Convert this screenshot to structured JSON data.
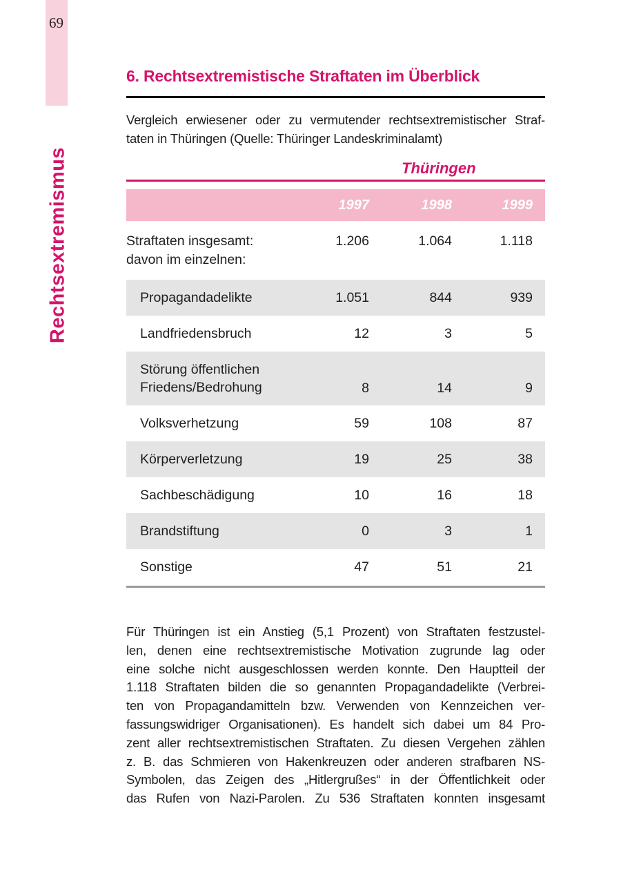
{
  "page": {
    "number": "69",
    "sidebar_label": "Rechtsextremismus"
  },
  "colors": {
    "accent_magenta": "#d4146a",
    "sidebar_pink": "#f8d2dd",
    "table_header_pink": "#f5b7ca",
    "row_stripe_gray": "#e4e4e4",
    "rule_black": "#0a0a0a",
    "rule_gray": "#9b9b9b",
    "body_text": "#1e1e1e"
  },
  "section": {
    "heading": "6. Rechtsextremistische Straftaten im Überblick",
    "intro_lines": [
      "Vergleich erwiesener oder zu vermutender rechtsextremistischer Straf-",
      "taten in Thüringen (Quelle: Thüringer Landeskriminalamt)"
    ]
  },
  "table": {
    "title": "Thüringen",
    "years": [
      "1997",
      "1998",
      "1999"
    ],
    "summary_row": {
      "line1": "Straftaten insgesamt:",
      "line2": "davon im einzelnen:",
      "values": [
        "1.206",
        "1.064",
        "1.118"
      ]
    },
    "rows": [
      {
        "line1": "Propagandadelikte",
        "line2": "",
        "values": [
          "1.051",
          "844",
          "939"
        ]
      },
      {
        "line1": "Landfriedensbruch",
        "line2": "",
        "values": [
          "12",
          "3",
          "5"
        ]
      },
      {
        "line1": "Störung öffentlichen",
        "line2": "Friedens/Bedrohung",
        "values": [
          "8",
          "14",
          "9"
        ]
      },
      {
        "line1": "Volksverhetzung",
        "line2": "",
        "values": [
          "59",
          "108",
          "87"
        ]
      },
      {
        "line1": "Körperverletzung",
        "line2": "",
        "values": [
          "19",
          "25",
          "38"
        ]
      },
      {
        "line1": "Sachbeschädigung",
        "line2": "",
        "values": [
          "10",
          "16",
          "18"
        ]
      },
      {
        "line1": "Brandstiftung",
        "line2": "",
        "values": [
          "0",
          "3",
          "1"
        ]
      },
      {
        "line1": "Sonstige",
        "line2": "",
        "values": [
          "47",
          "51",
          "21"
        ]
      }
    ]
  },
  "body": {
    "lines": [
      "Für Thüringen ist ein Anstieg (5,1 Prozent) von Straftaten festzustel-",
      "len, denen eine rechtsextremistische Motivation zugrunde lag oder",
      "eine solche nicht ausgeschlossen werden konnte. Den Hauptteil der",
      "1.118 Straftaten bilden die so genannten Propagandadelikte (Verbrei-",
      "ten von Propagandamitteln bzw. Verwenden von Kennzeichen ver-",
      "fassungswidriger Organisationen). Es handelt sich dabei um 84 Pro-",
      "zent aller rechtsextremistischen Straftaten. Zu diesen Vergehen zählen",
      "z. B. das Schmieren von Hakenkreuzen oder anderen strafbaren NS-",
      "Symbolen, das Zeigen des „Hitlergrußes“ in der Öffentlichkeit oder",
      "das Rufen von Nazi-Parolen. Zu 536 Straftaten konnten insgesamt"
    ]
  }
}
